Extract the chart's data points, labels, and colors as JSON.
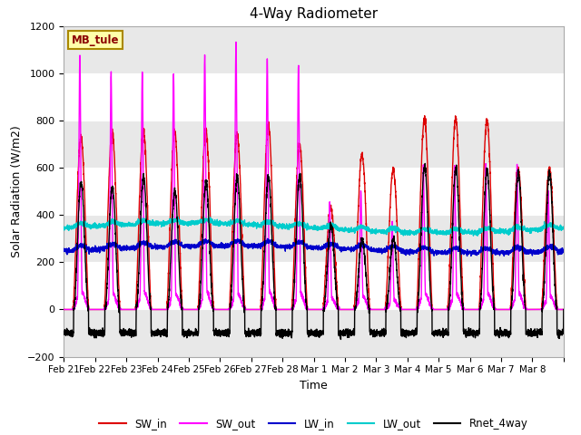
{
  "title": "4-Way Radiometer",
  "xlabel": "Time",
  "ylabel": "Solar Radiation (W/m2)",
  "ylim": [
    -200,
    1200
  ],
  "yticks": [
    -200,
    0,
    200,
    400,
    600,
    800,
    1000,
    1200
  ],
  "station_label": "MB_tule",
  "legend": [
    "SW_in",
    "SW_out",
    "LW_in",
    "LW_out",
    "Rnet_4way"
  ],
  "colors": {
    "SW_in": "#dd0000",
    "SW_out": "#ff00ff",
    "LW_in": "#0000cc",
    "LW_out": "#00cccc",
    "Rnet_4way": "#000000"
  },
  "linewidths": {
    "SW_in": 1.0,
    "SW_out": 1.0,
    "LW_in": 1.0,
    "LW_out": 1.0,
    "Rnet_4way": 1.0
  },
  "bg_color": "#ffffff",
  "plot_bg_color": "#ffffff",
  "band_colors": [
    "#f0f0f0",
    "#e0e0e0"
  ],
  "grid_color": "#e8e8e8",
  "figsize": [
    6.4,
    4.8
  ],
  "dpi": 100,
  "sw_in_peaks": [
    730,
    750,
    760,
    750,
    760,
    740,
    780,
    700,
    430,
    660,
    590,
    810,
    810,
    800,
    600,
    600
  ],
  "sw_out_spike_peaks": [
    1070,
    1000,
    1010,
    1000,
    1080,
    1120,
    1060,
    1040,
    450,
    500,
    370,
    610,
    610,
    610,
    610,
    500
  ],
  "sw_out_low_peaks": [
    80,
    70,
    75,
    70,
    75,
    70,
    80,
    75,
    50,
    60,
    40,
    70,
    70,
    70,
    70,
    60
  ],
  "lw_in_base": 255,
  "lw_out_base": 345,
  "rnet_peaks": [
    540,
    520,
    560,
    500,
    540,
    560,
    560,
    570,
    350,
    300,
    300,
    610,
    600,
    590,
    580,
    580
  ],
  "rnet_night": -100,
  "num_points": 4000,
  "num_days": 16
}
